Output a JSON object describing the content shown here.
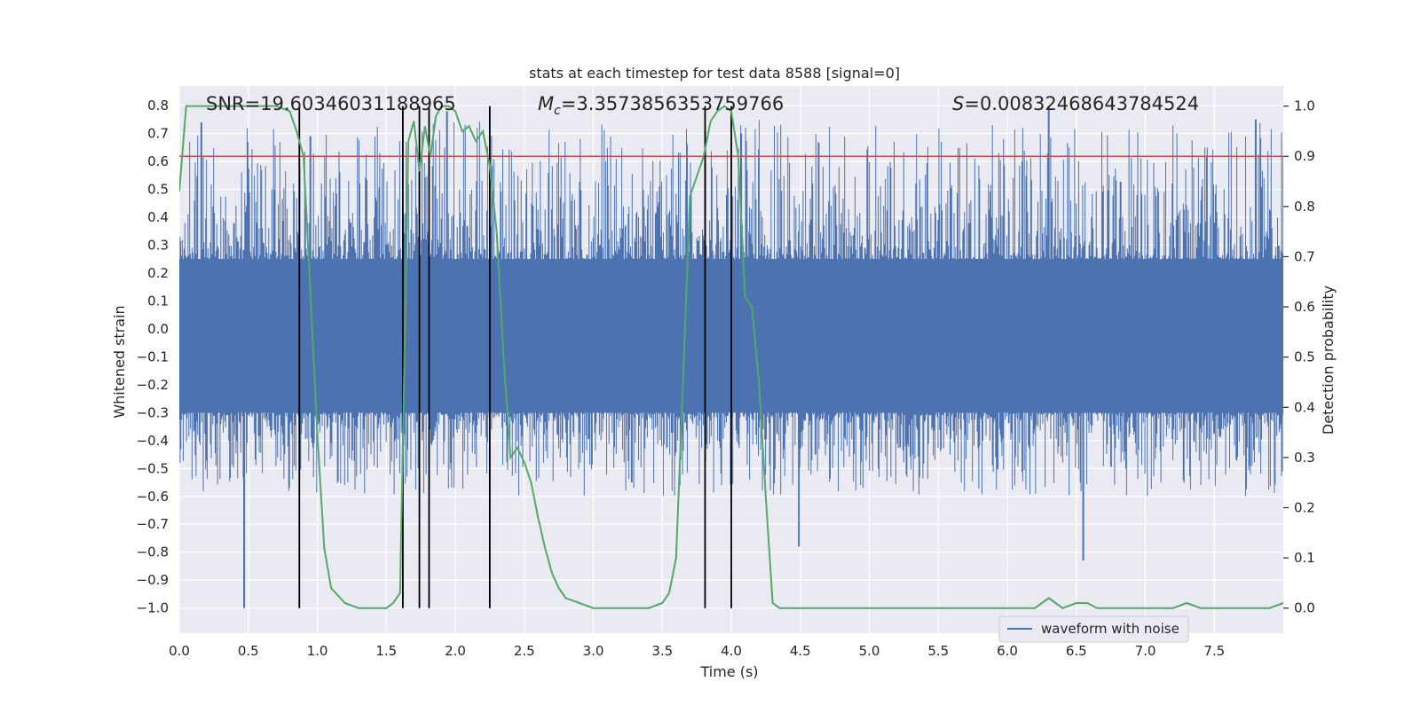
{
  "chart_data": {
    "type": "line",
    "title": "stats at each timestep for test data 8588 [signal=0]",
    "xlabel": "Time (s)",
    "ylabel": "Whitened strain",
    "y2label": "Detection probability",
    "xlim": [
      0.0,
      8.0
    ],
    "ylim": [
      -1.09,
      0.87
    ],
    "y2lim": [
      -0.05,
      1.04
    ],
    "xticks": [
      0.0,
      0.5,
      1.0,
      1.5,
      2.0,
      2.5,
      3.0,
      3.5,
      4.0,
      4.5,
      5.0,
      5.5,
      6.0,
      6.5,
      7.0,
      7.5
    ],
    "xtick_labels": [
      "0.0",
      "0.5",
      "1.0",
      "1.5",
      "2.0",
      "2.5",
      "3.0",
      "3.5",
      "4.0",
      "4.5",
      "5.0",
      "5.5",
      "6.0",
      "6.5",
      "7.0",
      "7.5"
    ],
    "yticks": [
      0.8,
      0.7,
      0.6,
      0.5,
      0.4,
      0.3,
      0.2,
      0.1,
      0.0,
      -0.1,
      -0.2,
      -0.3,
      -0.4,
      -0.5,
      -0.6,
      -0.7,
      -0.8,
      -0.9,
      -1.0
    ],
    "ytick_labels": [
      "0.8",
      "0.7",
      "0.6",
      "0.5",
      "0.4",
      "0.3",
      "0.2",
      "0.1",
      "0.0",
      "−0.1",
      "−0.2",
      "−0.3",
      "−0.4",
      "−0.5",
      "−0.6",
      "−0.7",
      "−0.8",
      "−0.9",
      "−1.0"
    ],
    "y2ticks": [
      1.0,
      0.9,
      0.8,
      0.7,
      0.6,
      0.5,
      0.4,
      0.3,
      0.2,
      0.1,
      0.0
    ],
    "y2tick_labels": [
      "1.0",
      "0.9",
      "0.8",
      "0.7",
      "0.6",
      "0.5",
      "0.4",
      "0.3",
      "0.2",
      "0.1",
      "0.0"
    ],
    "annotations": {
      "snr": "SNR=19.60346031188965",
      "mc_symbol": "M",
      "mc_sub": "c",
      "mc_value": "=3.3573856353759766",
      "s_symbol": "S",
      "s_value": "=0.00832468643784524"
    },
    "legend": {
      "label": "waveform with noise",
      "position": "lower-right"
    },
    "series": [
      {
        "name": "waveform with noise",
        "axis": "left",
        "color": "#4c72b0",
        "description": "noisy whitened strain, dense band roughly between -0.3 and 0.25 with spikes up to about 0.8 and down to -1.0",
        "band_low": -0.3,
        "band_high": 0.25,
        "spikes": [
          {
            "t": 0.47,
            "v": -1.0
          },
          {
            "t": 0.16,
            "v": 0.74
          },
          {
            "t": 0.95,
            "v": 0.69
          },
          {
            "t": 1.94,
            "v": 0.78
          },
          {
            "t": 4.07,
            "v": 0.7
          },
          {
            "t": 6.3,
            "v": 0.8
          },
          {
            "t": 7.8,
            "v": 0.75
          },
          {
            "t": 6.55,
            "v": -0.83
          },
          {
            "t": 4.49,
            "v": -0.78
          }
        ]
      },
      {
        "name": "detection probability",
        "axis": "right",
        "color": "#55a868",
        "x": [
          0.0,
          0.05,
          0.1,
          0.2,
          0.3,
          0.5,
          0.7,
          0.8,
          0.85,
          0.9,
          0.95,
          1.0,
          1.05,
          1.1,
          1.2,
          1.3,
          1.4,
          1.5,
          1.55,
          1.6,
          1.63,
          1.66,
          1.7,
          1.74,
          1.78,
          1.82,
          1.86,
          1.9,
          1.95,
          2.0,
          2.05,
          2.1,
          2.15,
          2.2,
          2.25,
          2.3,
          2.35,
          2.4,
          2.45,
          2.5,
          2.55,
          2.6,
          2.65,
          2.7,
          2.75,
          2.8,
          2.9,
          3.0,
          3.1,
          3.2,
          3.3,
          3.4,
          3.5,
          3.55,
          3.6,
          3.65,
          3.7,
          3.75,
          3.8,
          3.85,
          3.9,
          3.95,
          4.0,
          4.05,
          4.1,
          4.15,
          4.2,
          4.25,
          4.3,
          4.35,
          4.4,
          4.5,
          5.0,
          5.5,
          6.0,
          6.2,
          6.3,
          6.4,
          6.5,
          6.58,
          6.65,
          7.0,
          7.2,
          7.3,
          7.4,
          7.6,
          7.9,
          8.0
        ],
        "values": [
          0.83,
          1.0,
          1.0,
          1.0,
          1.0,
          1.0,
          1.0,
          0.99,
          0.95,
          0.9,
          0.63,
          0.35,
          0.12,
          0.04,
          0.01,
          0.0,
          0.0,
          0.0,
          0.01,
          0.03,
          0.48,
          0.93,
          0.97,
          0.87,
          0.96,
          0.9,
          0.98,
          1.0,
          1.0,
          0.99,
          0.95,
          0.96,
          0.93,
          0.95,
          0.88,
          0.75,
          0.5,
          0.3,
          0.32,
          0.29,
          0.25,
          0.18,
          0.12,
          0.07,
          0.04,
          0.02,
          0.01,
          0.0,
          0.0,
          0.0,
          0.0,
          0.0,
          0.01,
          0.03,
          0.1,
          0.45,
          0.82,
          0.86,
          0.9,
          0.97,
          0.99,
          1.0,
          0.99,
          0.9,
          0.62,
          0.6,
          0.45,
          0.22,
          0.01,
          0.0,
          0.0,
          0.0,
          0.0,
          0.0,
          0.0,
          0.0,
          0.02,
          0.0,
          0.01,
          0.01,
          0.0,
          0.0,
          0.0,
          0.01,
          0.0,
          0.0,
          0.0,
          0.01
        ]
      }
    ],
    "threshold": {
      "axis": "right",
      "value": 0.9,
      "color": "#c44e52"
    },
    "vlines": [
      0.87,
      1.62,
      1.74,
      1.81,
      2.25,
      3.81,
      4.0
    ]
  }
}
